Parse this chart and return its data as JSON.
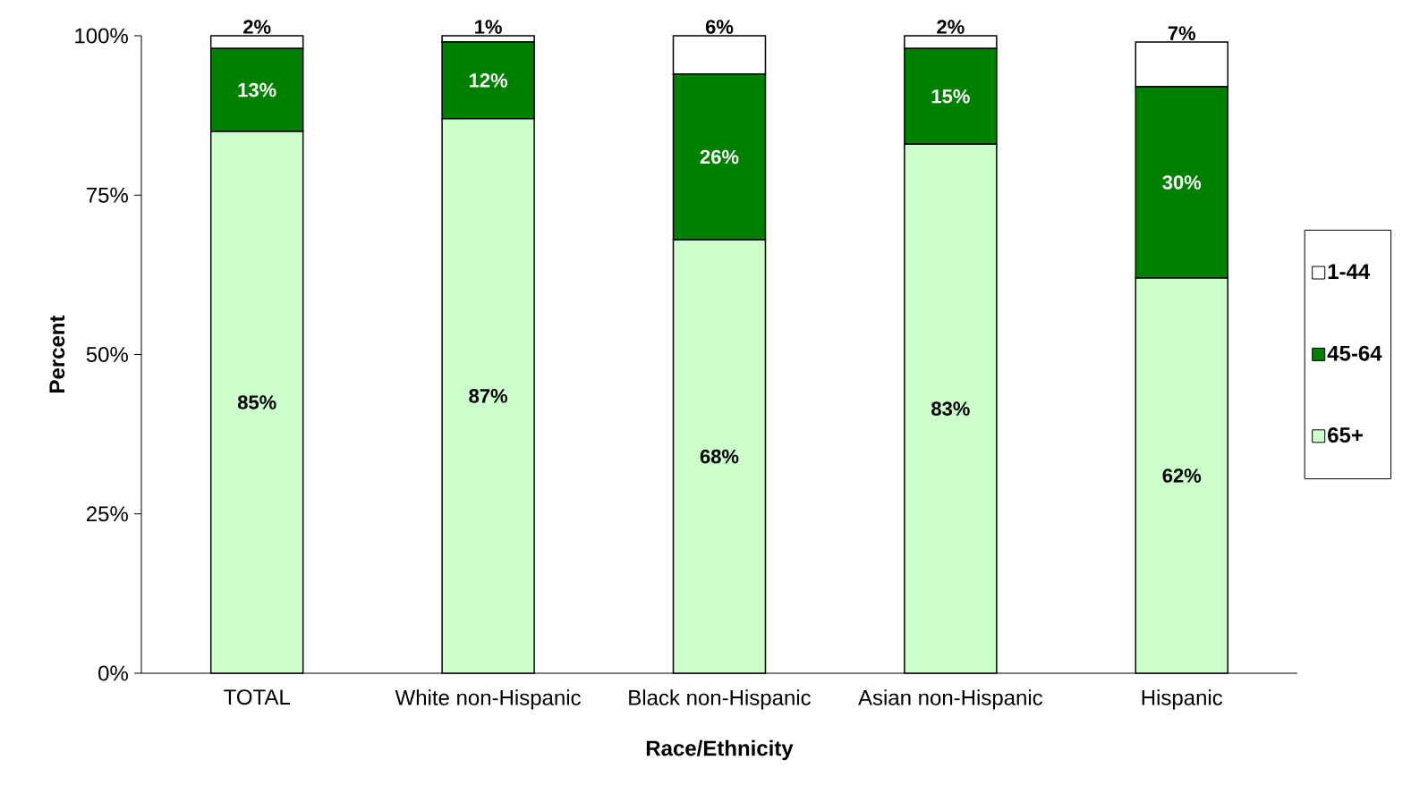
{
  "chart_data": {
    "type": "bar",
    "stacked": true,
    "xlabel": "Race/Ethnicity",
    "ylabel": "Percent",
    "categories": [
      "TOTAL",
      "White non-Hispanic",
      "Black non-Hispanic",
      "Asian non-Hispanic",
      "Hispanic"
    ],
    "ylim": [
      0,
      100
    ],
    "yticks": [
      {
        "value": 0,
        "label": "0%"
      },
      {
        "value": 25,
        "label": "25%"
      },
      {
        "value": 50,
        "label": "50%"
      },
      {
        "value": 75,
        "label": "75%"
      },
      {
        "value": 100,
        "label": "100%"
      }
    ],
    "legend": "right",
    "series": [
      {
        "name": "65+",
        "color": "#ccffcc",
        "values": [
          85,
          87,
          68,
          83,
          62
        ],
        "value_labels": [
          "85%",
          "87%",
          "68%",
          "83%",
          "62%"
        ]
      },
      {
        "name": "45-64",
        "color": "#008000",
        "values": [
          13,
          12,
          26,
          15,
          30
        ],
        "value_labels": [
          "13%",
          "12%",
          "26%",
          "15%",
          "30%"
        ]
      },
      {
        "name": "1-44",
        "color": "#ffffff",
        "values": [
          2,
          1,
          6,
          2,
          7
        ],
        "value_labels": [
          "2%",
          "1%",
          "6%",
          "2%",
          "7%"
        ]
      }
    ]
  }
}
